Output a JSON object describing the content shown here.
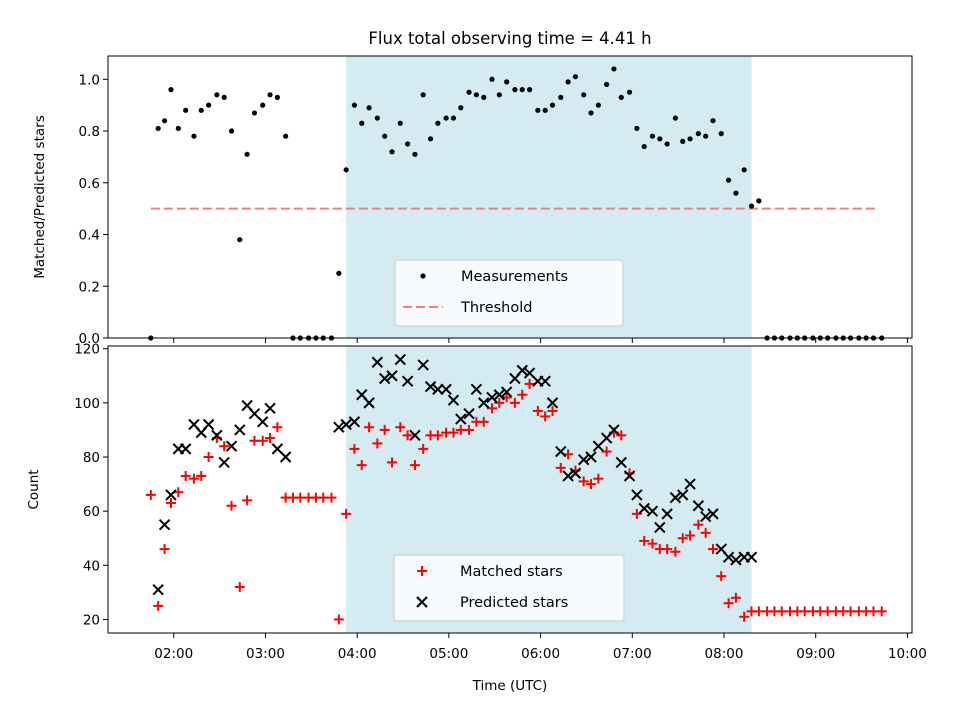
{
  "chart_data": [
    {
      "type": "scatter",
      "title": "Flux total observing time = 4.41 h",
      "ylabel": "Matched/Predicted stars",
      "xlabel": "",
      "xlim": [
        1.283,
        10.05
      ],
      "ylim": [
        0,
        1.09
      ],
      "yticks": [
        0.0,
        0.2,
        0.4,
        0.6,
        0.8,
        1.0
      ],
      "ytick_labels": [
        "0.0",
        "0.2",
        "0.4",
        "0.6",
        "0.8",
        "1.0"
      ],
      "xticks": [
        2,
        3,
        4,
        5,
        6,
        7,
        8,
        9,
        10
      ],
      "shaded_region": {
        "x_start": 3.88,
        "x_end": 8.3,
        "color": "#add8e6"
      },
      "threshold": {
        "y": 0.5,
        "x_start": 1.75,
        "x_end": 9.68,
        "color": "#f08080"
      },
      "legend": {
        "position": "lower-center",
        "entries": [
          "Measurements",
          "Threshold"
        ]
      },
      "series": [
        {
          "name": "Measurements",
          "color": "#000000",
          "marker": "dot",
          "x": [
            1.75,
            1.83,
            1.9,
            1.97,
            2.05,
            2.13,
            2.22,
            2.3,
            2.38,
            2.47,
            2.55,
            2.63,
            2.72,
            2.8,
            2.88,
            2.97,
            3.05,
            3.13,
            3.22,
            3.3,
            3.38,
            3.47,
            3.55,
            3.63,
            3.72,
            3.8,
            3.88,
            3.97,
            4.05,
            4.13,
            4.22,
            4.3,
            4.38,
            4.47,
            4.55,
            4.63,
            4.72,
            4.8,
            4.88,
            4.97,
            5.05,
            5.13,
            5.22,
            5.3,
            5.38,
            5.47,
            5.55,
            5.63,
            5.72,
            5.8,
            5.88,
            5.97,
            6.05,
            6.13,
            6.22,
            6.3,
            6.38,
            6.47,
            6.55,
            6.63,
            6.72,
            6.8,
            6.88,
            6.97,
            7.05,
            7.13,
            7.22,
            7.3,
            7.38,
            7.47,
            7.55,
            7.63,
            7.72,
            7.8,
            7.88,
            7.97,
            8.05,
            8.13,
            8.22,
            8.3,
            8.38,
            8.47,
            8.55,
            8.63,
            8.72,
            8.8,
            8.88,
            8.97,
            9.05,
            9.13,
            9.22,
            9.3,
            9.38,
            9.47,
            9.55,
            9.63,
            9.72
          ],
          "y": [
            0.0,
            0.81,
            0.84,
            0.96,
            0.81,
            0.88,
            0.78,
            0.88,
            0.9,
            0.94,
            0.93,
            0.8,
            0.38,
            0.71,
            0.87,
            0.9,
            0.94,
            0.93,
            0.78,
            0.0,
            0.0,
            0.0,
            0.0,
            0.0,
            0.0,
            0.25,
            0.65,
            0.9,
            0.83,
            0.89,
            0.85,
            0.78,
            0.72,
            0.83,
            0.75,
            0.71,
            0.94,
            0.77,
            0.83,
            0.85,
            0.85,
            0.89,
            0.95,
            0.94,
            0.93,
            1.0,
            0.94,
            0.99,
            0.96,
            0.96,
            0.96,
            0.88,
            0.88,
            0.9,
            0.93,
            0.99,
            1.01,
            0.94,
            0.87,
            0.9,
            0.98,
            1.04,
            0.93,
            0.95,
            0.81,
            0.74,
            0.78,
            0.77,
            0.75,
            0.85,
            0.76,
            0.77,
            0.79,
            0.78,
            0.84,
            0.79,
            0.61,
            0.56,
            0.65,
            0.51,
            0.53,
            0.0,
            0.0,
            0.0,
            0.0,
            0.0,
            0.0,
            0.0,
            0.0,
            0.0,
            0.0,
            0.0,
            0.0,
            0.0,
            0.0,
            0.0,
            0.0
          ]
        }
      ]
    },
    {
      "type": "scatter",
      "title": "",
      "ylabel": "Count",
      "xlabel": "Time (UTC)",
      "xlim": [
        1.283,
        10.05
      ],
      "ylim": [
        15,
        121
      ],
      "yticks": [
        20,
        40,
        60,
        80,
        100,
        120
      ],
      "ytick_labels": [
        "20",
        "40",
        "60",
        "80",
        "100",
        "120"
      ],
      "xticks": [
        2,
        3,
        4,
        5,
        6,
        7,
        8,
        9,
        10
      ],
      "xtick_labels": [
        "02:00",
        "03:00",
        "04:00",
        "05:00",
        "06:00",
        "07:00",
        "08:00",
        "09:00",
        "10:00"
      ],
      "shaded_region": {
        "x_start": 3.88,
        "x_end": 8.3,
        "color": "#add8e6"
      },
      "legend": {
        "position": "lower-center",
        "entries": [
          "Matched stars",
          "Predicted stars"
        ]
      },
      "series": [
        {
          "name": "Matched stars",
          "color": "#ff0000",
          "marker": "plus",
          "x": [
            1.75,
            1.83,
            1.9,
            1.97,
            2.05,
            2.13,
            2.22,
            2.3,
            2.38,
            2.47,
            2.55,
            2.63,
            2.72,
            2.8,
            2.88,
            2.97,
            3.05,
            3.13,
            3.22,
            3.3,
            3.38,
            3.47,
            3.55,
            3.63,
            3.72,
            3.8,
            3.88,
            3.97,
            4.05,
            4.13,
            4.22,
            4.3,
            4.38,
            4.47,
            4.55,
            4.63,
            4.72,
            4.8,
            4.88,
            4.97,
            5.05,
            5.13,
            5.22,
            5.3,
            5.38,
            5.47,
            5.55,
            5.63,
            5.72,
            5.8,
            5.88,
            5.97,
            6.05,
            6.13,
            6.22,
            6.3,
            6.38,
            6.47,
            6.55,
            6.63,
            6.72,
            6.8,
            6.88,
            6.97,
            7.05,
            7.13,
            7.22,
            7.3,
            7.38,
            7.47,
            7.55,
            7.63,
            7.72,
            7.8,
            7.88,
            7.97,
            8.05,
            8.13,
            8.22,
            8.3,
            8.38,
            8.47,
            8.55,
            8.63,
            8.72,
            8.8,
            8.88,
            8.97,
            9.05,
            9.13,
            9.22,
            9.3,
            9.38,
            9.47,
            9.55,
            9.63,
            9.72
          ],
          "y": [
            66,
            25,
            46,
            63,
            67,
            73,
            72,
            73,
            80,
            87,
            84,
            62,
            32,
            64,
            86,
            86,
            87,
            91,
            65,
            65,
            65,
            65,
            65,
            65,
            65,
            20,
            59,
            83,
            77,
            91,
            85,
            90,
            78,
            91,
            88,
            77,
            83,
            88,
            88,
            89,
            89,
            90,
            90,
            93,
            93,
            98,
            100,
            102,
            100,
            103,
            107,
            97,
            95,
            97,
            76,
            81,
            75,
            71,
            70,
            72,
            82,
            89,
            88,
            74,
            59,
            49,
            48,
            46,
            46,
            45,
            50,
            51,
            55,
            52,
            46,
            36,
            26,
            28,
            21,
            23,
            23,
            23,
            23,
            23,
            23,
            23,
            23,
            23,
            23,
            23,
            23,
            23,
            23,
            23,
            23,
            23,
            23
          ]
        },
        {
          "name": "Predicted stars",
          "color": "#000000",
          "marker": "x",
          "x": [
            1.83,
            1.9,
            1.97,
            2.05,
            2.13,
            2.22,
            2.3,
            2.38,
            2.47,
            2.55,
            2.63,
            2.72,
            2.8,
            2.88,
            2.97,
            3.05,
            3.13,
            3.22,
            3.8,
            3.88,
            3.97,
            4.05,
            4.13,
            4.22,
            4.3,
            4.38,
            4.47,
            4.55,
            4.63,
            4.72,
            4.8,
            4.88,
            4.97,
            5.05,
            5.13,
            5.22,
            5.3,
            5.38,
            5.47,
            5.55,
            5.63,
            5.72,
            5.8,
            5.88,
            5.97,
            6.05,
            6.13,
            6.22,
            6.3,
            6.38,
            6.47,
            6.55,
            6.63,
            6.72,
            6.8,
            6.88,
            6.97,
            7.05,
            7.13,
            7.22,
            7.3,
            7.38,
            7.47,
            7.55,
            7.63,
            7.72,
            7.8,
            7.88,
            7.97,
            8.05,
            8.13,
            8.22,
            8.3
          ],
          "y": [
            31,
            55,
            66,
            83,
            83,
            92,
            89,
            92,
            88,
            78,
            84,
            90,
            99,
            96,
            93,
            98,
            83,
            80,
            91,
            92,
            93,
            103,
            100,
            115,
            109,
            110,
            116,
            108,
            88,
            114,
            106,
            105,
            105,
            101,
            94,
            96,
            105,
            100,
            102,
            103,
            104,
            109,
            112,
            111,
            108,
            108,
            100,
            82,
            73,
            74,
            79,
            80,
            84,
            87,
            90,
            78,
            73,
            66,
            61,
            60,
            54,
            59,
            65,
            66,
            70,
            62,
            58,
            59,
            46,
            43,
            42,
            43,
            43
          ]
        }
      ]
    }
  ]
}
